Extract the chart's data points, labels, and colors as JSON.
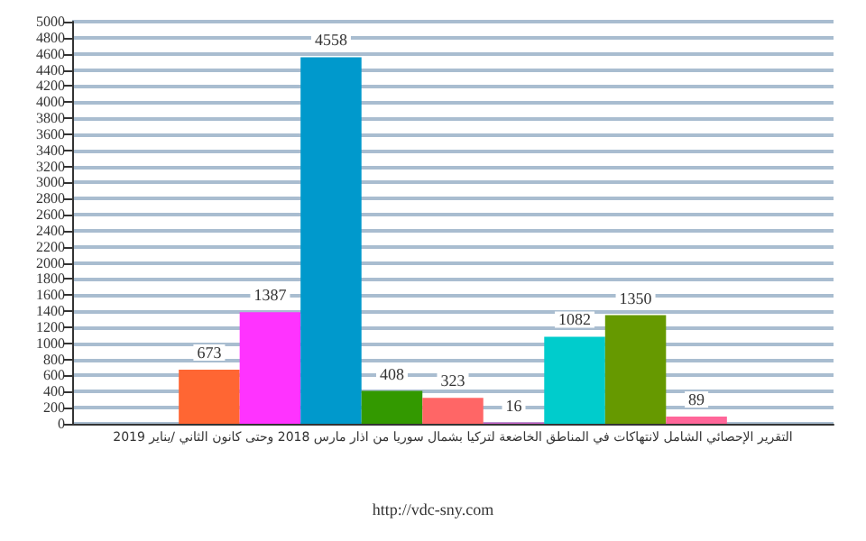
{
  "chart_data": {
    "type": "bar",
    "categories": [
      "التقرير الإحصائي الشامل لانتهاكات في المناطق الخاضعة لتركيا بشمال سوريا من اذار مارس 2018 وحتى كانون الثاني /يناير 2019"
    ],
    "series": [
      {
        "color": "#ff6633",
        "values": [
          673
        ]
      },
      {
        "color": "#ff33ff",
        "values": [
          1387
        ]
      },
      {
        "color": "#0099cc",
        "values": [
          4558
        ]
      },
      {
        "color": "#339900",
        "values": [
          408
        ]
      },
      {
        "color": "#ff6666",
        "values": [
          323
        ]
      },
      {
        "color": "#cc66cc",
        "values": [
          16
        ]
      },
      {
        "color": "#00cccc",
        "values": [
          1082
        ]
      },
      {
        "color": "#669900",
        "values": [
          1350
        ]
      },
      {
        "color": "#ff6699",
        "values": [
          89
        ]
      }
    ],
    "ylim": [
      0,
      5000
    ],
    "yticks": [
      0,
      200,
      400,
      600,
      800,
      1000,
      1200,
      1400,
      1600,
      1800,
      2000,
      2200,
      2400,
      2600,
      2800,
      3000,
      3200,
      3400,
      3600,
      3800,
      4000,
      4200,
      4400,
      4600,
      4800,
      5000
    ],
    "grid": "y",
    "data_labels": true,
    "annotations": [
      "http://vdc-sny.com"
    ]
  }
}
